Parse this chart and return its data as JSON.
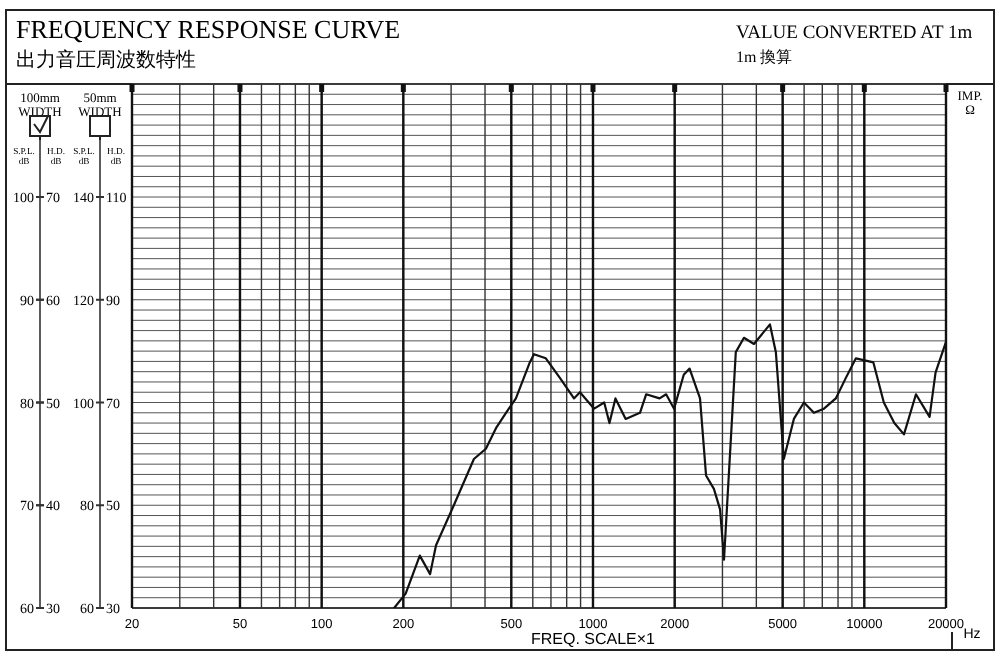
{
  "chart_data": {
    "type": "line",
    "title": "FREQUENCY RESPONSE CURVE",
    "subtitle": "出力音圧周波数特性",
    "xlabel": "FREQ. SCALE×1",
    "ylabel": "S.P.L. dB",
    "y2label": "H.D. dB",
    "y3label": "S.P.L. dB",
    "annotations": [
      "VALUE CONVERTED AT 1m",
      "1m 換算",
      "100mm WIDTH",
      "50mm WIDTH",
      "IMP. Ω",
      "Hz",
      "H.D. dB",
      "110",
      "90",
      "70",
      "50",
      "30"
    ],
    "log": "x",
    "xlim": [
      20,
      20000
    ],
    "xticks": [
      20,
      50,
      100,
      200,
      500,
      1000,
      2000,
      5000,
      10000,
      20000
    ],
    "ylim": [
      60,
      111
    ],
    "yticks": [
      60,
      70,
      80,
      90,
      100
    ],
    "y2lim": [
      30,
      81
    ],
    "y2ticks": [
      30,
      40,
      50,
      60,
      70
    ],
    "y3lim": [
      60,
      162
    ],
    "y3ticks": [
      60,
      80,
      100,
      120,
      140
    ],
    "grid": true,
    "marker": "none",
    "line_style": "solid",
    "series": [
      {
        "color": "#111111",
        "x": [
          185,
          204,
          230,
          251,
          264,
          307,
          364,
          403,
          439,
          478,
          520,
          585,
          606,
          670,
          755,
          851,
          895,
          1010,
          1100,
          1150,
          1210,
          1320,
          1490,
          1570,
          1760,
          1860,
          1990,
          2160,
          2270,
          2480,
          2610,
          2790,
          2940,
          3040,
          3360,
          3600,
          3920,
          4490,
          4720,
          5050,
          5500,
          5990,
          6520,
          7100,
          7850,
          8550,
          9310,
          10800,
          11800,
          12900,
          14000,
          15500,
          17400,
          18300,
          20000
        ],
        "values": [
          60,
          61.4,
          65.1,
          63.3,
          66.1,
          70,
          74.5,
          75.5,
          77.5,
          79,
          80.4,
          83.9,
          84.7,
          84.3,
          82.4,
          80.4,
          81,
          79.4,
          80,
          78,
          80.4,
          78.4,
          79,
          80.8,
          80.4,
          80.8,
          79.4,
          82.7,
          83.3,
          80.4,
          72.9,
          71.6,
          69.6,
          64.7,
          84.9,
          86.3,
          85.7,
          87.6,
          84.9,
          74.5,
          78.4,
          80,
          79,
          79.4,
          80.4,
          82.4,
          84.3,
          83.9,
          80,
          78,
          76.9,
          80.8,
          78.6,
          82.9,
          85.9
        ]
      }
    ]
  }
}
